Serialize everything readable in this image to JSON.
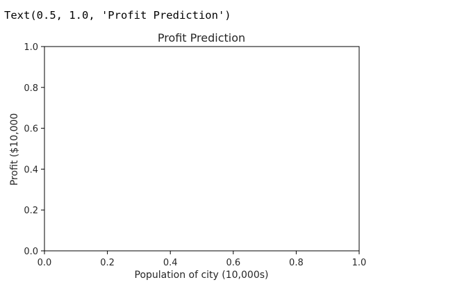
{
  "output": {
    "repr": "Text(0.5, 1.0, 'Profit Prediction')"
  },
  "chart_data": {
    "type": "scatter",
    "title": "Profit Prediction",
    "xlabel": "Population of city (10,000s)",
    "ylabel": "Profit ($10,000",
    "xlim": [
      0.0,
      1.0
    ],
    "ylim": [
      0.0,
      1.0
    ],
    "xticks": [
      0.0,
      0.2,
      0.4,
      0.6,
      0.8,
      1.0
    ],
    "yticks": [
      0.0,
      0.2,
      0.4,
      0.6,
      0.8,
      1.0
    ],
    "xtick_labels": [
      "0.0",
      "0.2",
      "0.4",
      "0.6",
      "0.8",
      "1.0"
    ],
    "ytick_labels": [
      "0.0",
      "0.2",
      "0.4",
      "0.6",
      "0.8",
      "1.0"
    ],
    "series": [],
    "grid": false
  }
}
